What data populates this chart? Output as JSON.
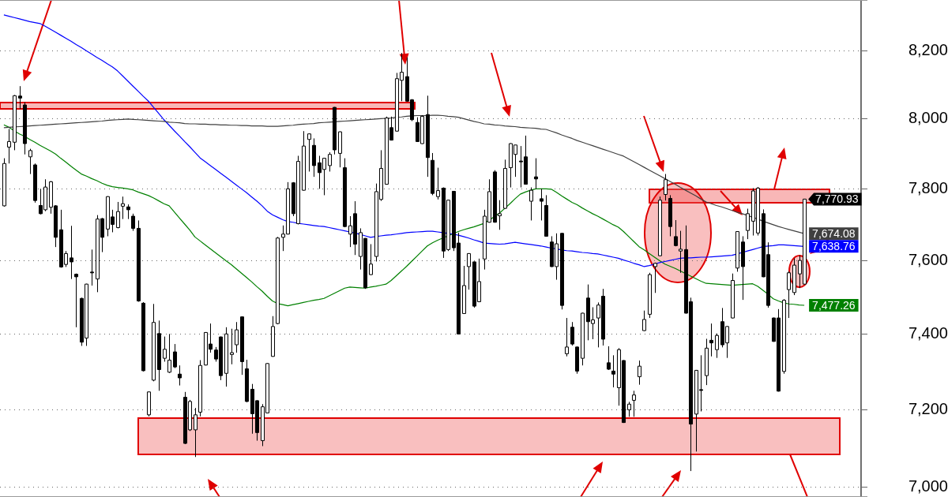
{
  "chart_data": {
    "type": "candlestick",
    "marker": "none",
    "log": "y",
    "grid": "y",
    "tick_labels": "y",
    "ylim": [
      6975,
      8353
    ],
    "yticks": [
      {
        "value": 7000,
        "label": "7,000"
      },
      {
        "value": 7200,
        "label": "7,200"
      },
      {
        "value": 7400,
        "label": "7,400"
      },
      {
        "value": 7600,
        "label": "7,600"
      },
      {
        "value": 7800,
        "label": "7,800"
      },
      {
        "value": 8000,
        "label": "8,000"
      },
      {
        "value": 8200,
        "label": "8,200"
      }
    ],
    "categories": [
      null,
      null,
      null,
      null,
      null,
      null,
      null,
      null,
      null,
      null,
      null,
      null,
      null,
      null,
      null,
      null,
      null,
      null,
      null,
      null,
      null,
      null,
      null,
      null,
      null,
      null,
      null,
      null,
      null,
      null,
      null,
      null,
      null,
      null,
      null,
      null,
      null,
      null,
      null,
      null,
      null,
      null,
      null,
      null,
      null,
      null,
      null,
      null,
      null,
      null,
      null,
      null,
      null,
      null,
      null,
      null,
      null,
      null,
      null,
      null,
      null,
      null,
      null,
      null,
      null,
      null,
      null,
      null,
      null,
      null,
      null,
      null,
      null,
      null,
      null,
      null,
      null,
      null,
      null,
      null,
      null,
      null,
      null,
      null,
      null,
      null,
      null,
      null,
      null,
      null,
      null,
      null,
      null,
      null,
      null,
      null,
      null,
      null,
      null,
      null,
      null,
      null,
      null,
      null,
      null,
      null,
      null,
      null,
      null,
      null,
      null,
      null,
      null,
      null,
      null,
      null,
      null,
      null,
      null,
      null,
      null,
      null,
      null,
      null,
      null,
      null,
      null,
      null,
      null,
      null,
      null,
      null,
      null,
      null,
      null,
      null,
      null,
      null,
      null,
      null,
      null,
      null,
      null,
      null,
      null,
      null,
      null,
      null,
      null,
      null,
      null,
      null,
      null,
      null,
      null,
      null
    ],
    "ohlc": [
      [
        7752,
        7887,
        7750,
        7872
      ],
      [
        7919,
        7971,
        7872,
        7935
      ],
      [
        7933,
        8070,
        7910,
        8068
      ],
      [
        8067,
        8096,
        8029,
        8061
      ],
      [
        8041,
        8049,
        7898,
        7929
      ],
      [
        7891,
        7914,
        7842,
        7909
      ],
      [
        7868,
        7872,
        7761,
        7767
      ],
      [
        7753,
        7800,
        7728,
        7730
      ],
      [
        7741,
        7827,
        7737,
        7805
      ],
      [
        7748,
        7822,
        7730,
        7820
      ],
      [
        7752,
        7754,
        7637,
        7664
      ],
      [
        7685,
        7741,
        7580,
        7582
      ],
      [
        7589,
        7626,
        7582,
        7619
      ],
      [
        7607,
        7696,
        7549,
        7596
      ],
      [
        7562,
        7564,
        7418,
        7555
      ],
      [
        7496,
        7498,
        7368,
        7378
      ],
      [
        7389,
        7536,
        7368,
        7535
      ],
      [
        7568,
        7630,
        7531,
        7566
      ],
      [
        7549,
        7726,
        7513,
        7715
      ],
      [
        7716,
        7718,
        7623,
        7664
      ],
      [
        7687,
        7779,
        7667,
        7778
      ],
      [
        7721,
        7741,
        7678,
        7700
      ],
      [
        7691,
        7763,
        7689,
        7736
      ],
      [
        7751,
        7778,
        7715,
        7758
      ],
      [
        7749,
        7756,
        7715,
        7741
      ],
      [
        7723,
        7730,
        7682,
        7689
      ],
      [
        7689,
        7711,
        7487,
        7489
      ],
      [
        7483,
        7486,
        7300,
        7302
      ],
      [
        7186,
        7247,
        7182,
        7246
      ],
      [
        7277,
        7481,
        7274,
        7431
      ],
      [
        7401,
        7436,
        7249,
        7305
      ],
      [
        7335,
        7393,
        7326,
        7359
      ],
      [
        7298,
        7400,
        7296,
        7330
      ],
      [
        7352,
        7373,
        7309,
        7312
      ],
      [
        7293,
        7316,
        7263,
        7283
      ],
      [
        7232,
        7246,
        7110,
        7112
      ],
      [
        7147,
        7225,
        7144,
        7221
      ],
      [
        7147,
        7204,
        7077,
        7186
      ],
      [
        7193,
        7330,
        7182,
        7316
      ],
      [
        7317,
        7405,
        7316,
        7404
      ],
      [
        7373,
        7428,
        7350,
        7359
      ],
      [
        7357,
        7365,
        7326,
        7333
      ],
      [
        7392,
        7393,
        7277,
        7289
      ],
      [
        7295,
        7418,
        7260,
        7400
      ],
      [
        7345,
        7414,
        7319,
        7350
      ],
      [
        7371,
        7432,
        7350,
        7411
      ],
      [
        7446,
        7447,
        7291,
        7326
      ],
      [
        7307,
        7331,
        7219,
        7221
      ],
      [
        7253,
        7267,
        7137,
        7189
      ],
      [
        7223,
        7224,
        7119,
        7140
      ],
      [
        7119,
        7214,
        7105,
        7207
      ],
      [
        7191,
        7322,
        7190,
        7321
      ],
      [
        7340,
        7448,
        7339,
        7420
      ],
      [
        7428,
        7665,
        7426,
        7662
      ],
      [
        7664,
        7697,
        7626,
        7673
      ],
      [
        7673,
        7819,
        7672,
        7800
      ],
      [
        7817,
        7819,
        7723,
        7730
      ],
      [
        7702,
        7894,
        7700,
        7878
      ],
      [
        7796,
        7965,
        7795,
        7922
      ],
      [
        7941,
        7958,
        7849,
        7957
      ],
      [
        7924,
        7944,
        7834,
        7866
      ],
      [
        7874,
        7894,
        7800,
        7846
      ],
      [
        7855,
        7888,
        7782,
        7887
      ],
      [
        7866,
        7904,
        7849,
        7898
      ],
      [
        8034,
        8035,
        7898,
        7911
      ],
      [
        7901,
        7964,
        7861,
        7963
      ],
      [
        7860,
        7887,
        7692,
        7694
      ],
      [
        7673,
        7723,
        7637,
        7696
      ],
      [
        7730,
        7765,
        7615,
        7645
      ],
      [
        7611,
        7689,
        7575,
        7677
      ],
      [
        7661,
        7662,
        7522,
        7525
      ],
      [
        7561,
        7645,
        7560,
        7590
      ],
      [
        7611,
        7815,
        7597,
        7792
      ],
      [
        7770,
        7910,
        7766,
        7858
      ],
      [
        7813,
        8007,
        7812,
        8003
      ],
      [
        7975,
        8007,
        7938,
        7939
      ],
      [
        7965,
        8135,
        7964,
        8118
      ],
      [
        8113,
        8194,
        8052,
        8137
      ],
      [
        8124,
        8181,
        8051,
        8052
      ],
      [
        8056,
        8058,
        7994,
        7998
      ],
      [
        7990,
        8005,
        7934,
        7935
      ],
      [
        7929,
        8011,
        7928,
        8008
      ],
      [
        8013,
        8068,
        7834,
        7889
      ],
      [
        7881,
        7902,
        7782,
        7787
      ],
      [
        7778,
        7860,
        7770,
        7795
      ],
      [
        7802,
        7804,
        7607,
        7626
      ],
      [
        7630,
        7769,
        7626,
        7768
      ],
      [
        7793,
        7794,
        7626,
        7635
      ],
      [
        7648,
        7677,
        7399,
        7400
      ],
      [
        7455,
        7585,
        7454,
        7531
      ],
      [
        7583,
        7620,
        7520,
        7619
      ],
      [
        7596,
        7597,
        7471,
        7475
      ],
      [
        7487,
        7605,
        7486,
        7542
      ],
      [
        7604,
        7741,
        7575,
        7723
      ],
      [
        7706,
        7827,
        7705,
        7792
      ],
      [
        7848,
        7853,
        7705,
        7706
      ],
      [
        7724,
        7768,
        7685,
        7730
      ],
      [
        7745,
        7883,
        7744,
        7858
      ],
      [
        7860,
        7930,
        7804,
        7929
      ],
      [
        7898,
        7925,
        7834,
        7925
      ],
      [
        7879,
        7922,
        7804,
        7877
      ],
      [
        7891,
        7952,
        7812,
        7813
      ],
      [
        7765,
        7804,
        7711,
        7796
      ],
      [
        7834,
        7887,
        7800,
        7828
      ],
      [
        7772,
        7800,
        7711,
        7765
      ],
      [
        7753,
        7782,
        7666,
        7667
      ],
      [
        7651,
        7667,
        7582,
        7583
      ],
      [
        7583,
        7675,
        7547,
        7646
      ],
      [
        7675,
        7676,
        7466,
        7477
      ],
      [
        7347,
        7443,
        7340,
        7365
      ],
      [
        7418,
        7432,
        7369,
        7373
      ],
      [
        7365,
        7366,
        7294,
        7301
      ],
      [
        7335,
        7457,
        7316,
        7456
      ],
      [
        7497,
        7534,
        7383,
        7433
      ],
      [
        7428,
        7472,
        7386,
        7438
      ],
      [
        7443,
        7485,
        7364,
        7478
      ],
      [
        7502,
        7522,
        7369,
        7386
      ],
      [
        7323,
        7367,
        7304,
        7306
      ],
      [
        7301,
        7343,
        7258,
        7293
      ],
      [
        7257,
        7362,
        7210,
        7358
      ],
      [
        7329,
        7330,
        7165,
        7166
      ],
      [
        7199,
        7220,
        7181,
        7214
      ],
      [
        7224,
        7249,
        7181,
        7238
      ],
      [
        7286,
        7329,
        7265,
        7314
      ],
      [
        7409,
        7463,
        7408,
        7439
      ],
      [
        7453,
        7566,
        7443,
        7561
      ],
      [
        7583,
        7594,
        7511,
        7592
      ],
      [
        7613,
        7778,
        7612,
        7768
      ],
      [
        7784,
        7842,
        7767,
        7826
      ],
      [
        7773,
        7782,
        7667,
        7694
      ],
      [
        7666,
        7712,
        7639,
        7641
      ],
      [
        7626,
        7682,
        7566,
        7631
      ],
      [
        7630,
        7697,
        7455,
        7456
      ],
      [
        7487,
        7498,
        7041,
        7162
      ],
      [
        7188,
        7304,
        7091,
        7303
      ],
      [
        7252,
        7343,
        7195,
        7250
      ],
      [
        7289,
        7387,
        7264,
        7362
      ],
      [
        7383,
        7428,
        7340,
        7376
      ],
      [
        7358,
        7401,
        7336,
        7396
      ],
      [
        7433,
        7470,
        7364,
        7371
      ],
      [
        7376,
        7421,
        7336,
        7420
      ],
      [
        7443,
        7564,
        7442,
        7545
      ],
      [
        7579,
        7681,
        7569,
        7680
      ],
      [
        7651,
        7667,
        7492,
        7583
      ],
      [
        7683,
        7744,
        7659,
        7730
      ],
      [
        7709,
        7802,
        7669,
        7794
      ],
      [
        7676,
        7805,
        7669,
        7802
      ],
      [
        7730,
        7742,
        7554,
        7555
      ],
      [
        7616,
        7650,
        7471,
        7477
      ],
      [
        7443,
        7444,
        7379,
        7380
      ],
      [
        7443,
        7467,
        7247,
        7248
      ],
      [
        7300,
        7494,
        7294,
        7491
      ],
      [
        7520,
        7570,
        7443,
        7566
      ],
      [
        7512,
        7606,
        7505,
        7587
      ],
      [
        7563,
        7614,
        7524,
        7600
      ],
      [
        7535,
        7771,
        7534,
        7770.93
      ]
    ],
    "series": [
      {
        "type": "line",
        "color": "#404040",
        "values": [
          7975,
          7976,
          7977,
          7978,
          7979,
          7980,
          7981,
          7982,
          7983,
          7984,
          7985,
          7986,
          7987,
          7988,
          7989,
          7990,
          7991,
          7992,
          7993,
          7994,
          7996,
          7997,
          7998,
          7999,
          8000,
          7999,
          7998,
          7997,
          7996,
          7995,
          7994,
          7993,
          7991,
          7990,
          7989,
          7987,
          7986,
          7986,
          7985,
          7985,
          7984,
          7984,
          7983,
          7983,
          7982,
          7982,
          7981,
          7981,
          7980,
          7980,
          7980,
          7979,
          7979,
          7979,
          7980,
          7981,
          7982,
          7984,
          7985,
          7986,
          7987,
          7989,
          7990,
          7991,
          7992,
          7993,
          7994,
          7995,
          7996,
          7997,
          7998,
          7999,
          8000,
          8001,
          8002,
          8003,
          8005,
          8006,
          8008,
          8009,
          8010,
          8010,
          8010,
          8011,
          8011,
          8010,
          8008,
          8007,
          8005,
          8001,
          7997,
          7993,
          7990,
          7986,
          7985,
          7983,
          7982,
          7980,
          7979,
          7978,
          7976,
          7975,
          7974,
          7973,
          7971,
          7970,
          7965,
          7960,
          7954,
          7949,
          7944,
          7938,
          7933,
          7928,
          7923,
          7918,
          7913,
          7908,
          7903,
          7898,
          7893,
          7885,
          7877,
          7869,
          7861,
          7853,
          7845,
          7837,
          7829,
          7821,
          7813,
          7804,
          7796,
          7788,
          7780,
          7771,
          7763,
          7758,
          7753,
          7749,
          7744,
          7739,
          7734,
          7730,
          7725,
          7720,
          7715,
          7709,
          7704,
          7699,
          7694,
          7690,
          7686,
          7682,
          7678,
          7674.08
        ],
        "value_labels": [
          null,
          null,
          null,
          null,
          null,
          null,
          null,
          null,
          null,
          null,
          null,
          null,
          null,
          null,
          null,
          null,
          null,
          null,
          null,
          null,
          null,
          null,
          null,
          null,
          null,
          null,
          null,
          null,
          null,
          null,
          null,
          null,
          null,
          null,
          null,
          null,
          null,
          null,
          null,
          null,
          null,
          null,
          null,
          null,
          null,
          null,
          null,
          null,
          null,
          null,
          null,
          null,
          null,
          null,
          null,
          null,
          null,
          null,
          null,
          null,
          null,
          null,
          null,
          null,
          null,
          null,
          null,
          null,
          null,
          null,
          null,
          null,
          null,
          null,
          null,
          null,
          null,
          null,
          null,
          null,
          null,
          null,
          null,
          null,
          null,
          null,
          null,
          null,
          null,
          null,
          null,
          null,
          null,
          null,
          null,
          null,
          null,
          null,
          null,
          null,
          null,
          null,
          null,
          null,
          null,
          null,
          null,
          null,
          null,
          null,
          null,
          null,
          null,
          null,
          null,
          null,
          null,
          null,
          null,
          null,
          null,
          null,
          null,
          null,
          null,
          null,
          null,
          null,
          null,
          null,
          null,
          null,
          null,
          null,
          null,
          null,
          null,
          null,
          null,
          null,
          null,
          null,
          null,
          null,
          null,
          null,
          null,
          null,
          null,
          null,
          null,
          null,
          null,
          null,
          null,
          "7,674.08"
        ]
      },
      {
        "type": "line",
        "color": "#0000ff",
        "values": [
          8308,
          8304,
          8300,
          8296,
          8292,
          8288,
          8285,
          8282,
          8274,
          8265,
          8256,
          8247,
          8238,
          8229,
          8219,
          8210,
          8200,
          8191,
          8181,
          8172,
          8162,
          8153,
          8141,
          8126,
          8111,
          8096,
          8081,
          8066,
          8052,
          8034,
          8016,
          7998,
          7982,
          7966,
          7951,
          7935,
          7920,
          7904,
          7888,
          7877,
          7866,
          7855,
          7844,
          7833,
          7822,
          7811,
          7800,
          7789,
          7777,
          7765,
          7752,
          7737,
          7727,
          7720,
          7713,
          7708,
          7706,
          7703,
          7701,
          7699,
          7697,
          7695,
          7694,
          7691,
          7688,
          7685,
          7682,
          7679,
          7676,
          7672,
          7668,
          7664,
          7666,
          7668,
          7670,
          7671,
          7673,
          7675,
          7677,
          7678,
          7679,
          7680,
          7681,
          7681,
          7679,
          7677,
          7675,
          7673,
          7670,
          7666,
          7662,
          7657,
          7653,
          7648,
          7647,
          7646,
          7645,
          7646,
          7648,
          7650,
          7648,
          7646,
          7644,
          7642,
          7640,
          7637,
          7634,
          7632,
          7629,
          7627,
          7626,
          7624,
          7622,
          7621,
          7619,
          7618,
          7615,
          7612,
          7609,
          7606,
          7601,
          7597,
          7592,
          7588,
          7583,
          7586,
          7590,
          7594,
          7597,
          7600,
          7603,
          7606,
          7607,
          7607,
          7608,
          7609,
          7609,
          7610,
          7611,
          7612,
          7613,
          7614,
          7618,
          7622,
          7626,
          7630,
          7634,
          7638,
          7640,
          7641,
          7643,
          7643,
          7642,
          7641,
          7640,
          7638.76
        ],
        "value_labels": [
          null,
          null,
          null,
          null,
          null,
          null,
          null,
          null,
          null,
          null,
          null,
          null,
          null,
          null,
          null,
          null,
          null,
          null,
          null,
          null,
          null,
          null,
          null,
          null,
          null,
          null,
          null,
          null,
          null,
          null,
          null,
          null,
          null,
          null,
          null,
          null,
          null,
          null,
          null,
          null,
          null,
          null,
          null,
          null,
          null,
          null,
          null,
          null,
          null,
          null,
          null,
          null,
          null,
          null,
          null,
          null,
          null,
          null,
          null,
          null,
          null,
          null,
          null,
          null,
          null,
          null,
          null,
          null,
          null,
          null,
          null,
          null,
          null,
          null,
          null,
          null,
          null,
          null,
          null,
          null,
          null,
          null,
          null,
          null,
          null,
          null,
          null,
          null,
          null,
          null,
          null,
          null,
          null,
          null,
          null,
          null,
          null,
          null,
          null,
          null,
          null,
          null,
          null,
          null,
          null,
          null,
          null,
          null,
          null,
          null,
          null,
          null,
          null,
          null,
          null,
          null,
          null,
          null,
          null,
          null,
          null,
          null,
          null,
          null,
          null,
          null,
          null,
          null,
          null,
          null,
          null,
          null,
          null,
          null,
          null,
          null,
          null,
          null,
          null,
          null,
          null,
          null,
          null,
          null,
          null,
          null,
          null,
          null,
          null,
          null,
          null,
          null,
          null,
          null,
          null,
          "7,638.76"
        ]
      },
      {
        "type": "line",
        "color": "#008000",
        "values": [
          7983,
          7976,
          7966,
          7957,
          7950,
          7941,
          7933,
          7924,
          7916,
          7908,
          7899,
          7887,
          7876,
          7864,
          7853,
          7842,
          7836,
          7829,
          7823,
          7816,
          7810,
          7806,
          7804,
          7802,
          7800,
          7797,
          7791,
          7786,
          7781,
          7774,
          7766,
          7758,
          7752,
          7735,
          7718,
          7701,
          7684,
          7665,
          7654,
          7643,
          7632,
          7621,
          7610,
          7599,
          7589,
          7577,
          7565,
          7553,
          7541,
          7528,
          7516,
          7502,
          7489,
          7482,
          7479,
          7476,
          7479,
          7482,
          7485,
          7488,
          7491,
          7493,
          7496,
          7503,
          7510,
          7517,
          7524,
          7527,
          7526,
          7525,
          7524,
          7527,
          7529,
          7532,
          7535,
          7545,
          7558,
          7571,
          7584,
          7598,
          7612,
          7626,
          7640,
          7649,
          7656,
          7662,
          7668,
          7674,
          7680,
          7685,
          7689,
          7693,
          7698,
          7703,
          7712,
          7722,
          7732,
          7745,
          7758,
          7772,
          7785,
          7791,
          7796,
          7800,
          7800,
          7800,
          7799,
          7790,
          7780,
          7771,
          7762,
          7755,
          7746,
          7738,
          7730,
          7723,
          7715,
          7707,
          7699,
          7692,
          7680,
          7666,
          7652,
          7638,
          7629,
          7619,
          7609,
          7599,
          7590,
          7584,
          7578,
          7571,
          7564,
          7557,
          7550,
          7543,
          7537,
          7536,
          7535,
          7534,
          7533,
          7532,
          7533,
          7534,
          7535,
          7536,
          7529,
          7518,
          7507,
          7495,
          7489,
          7484,
          7481,
          7480,
          7478,
          7477.26
        ],
        "value_labels": [
          null,
          null,
          null,
          null,
          null,
          null,
          null,
          null,
          null,
          null,
          null,
          null,
          null,
          null,
          null,
          null,
          null,
          null,
          null,
          null,
          null,
          null,
          null,
          null,
          null,
          null,
          null,
          null,
          null,
          null,
          null,
          null,
          null,
          null,
          null,
          null,
          null,
          null,
          null,
          null,
          null,
          null,
          null,
          null,
          null,
          null,
          null,
          null,
          null,
          null,
          null,
          null,
          null,
          null,
          null,
          null,
          null,
          null,
          null,
          null,
          null,
          null,
          null,
          null,
          null,
          null,
          null,
          null,
          null,
          null,
          null,
          null,
          null,
          null,
          null,
          null,
          null,
          null,
          null,
          null,
          null,
          null,
          null,
          null,
          null,
          null,
          null,
          null,
          null,
          null,
          null,
          null,
          null,
          null,
          null,
          null,
          null,
          null,
          null,
          null,
          null,
          null,
          null,
          null,
          null,
          null,
          null,
          null,
          null,
          null,
          null,
          null,
          null,
          null,
          null,
          null,
          null,
          null,
          null,
          null,
          null,
          null,
          null,
          null,
          null,
          null,
          null,
          null,
          null,
          null,
          null,
          null,
          null,
          null,
          null,
          null,
          null,
          null,
          null,
          null,
          null,
          null,
          null,
          null,
          null,
          null,
          null,
          null,
          null,
          null,
          null,
          null,
          null,
          null,
          null,
          "7,477.26"
        ]
      }
    ],
    "value_labels": [
      null,
      null,
      null,
      null,
      null,
      null,
      null,
      null,
      null,
      null,
      null,
      null,
      null,
      null,
      null,
      null,
      null,
      null,
      null,
      null,
      null,
      null,
      null,
      null,
      null,
      null,
      null,
      null,
      null,
      null,
      null,
      null,
      null,
      null,
      null,
      null,
      null,
      null,
      null,
      null,
      null,
      null,
      null,
      null,
      null,
      null,
      null,
      null,
      null,
      null,
      null,
      null,
      null,
      null,
      null,
      null,
      null,
      null,
      null,
      null,
      null,
      null,
      null,
      null,
      null,
      null,
      null,
      null,
      null,
      null,
      null,
      null,
      null,
      null,
      null,
      null,
      null,
      null,
      null,
      null,
      null,
      null,
      null,
      null,
      null,
      null,
      null,
      null,
      null,
      null,
      null,
      null,
      null,
      null,
      null,
      null,
      null,
      null,
      null,
      null,
      null,
      null,
      null,
      null,
      null,
      null,
      null,
      null,
      null,
      null,
      null,
      null,
      null,
      null,
      null,
      null,
      null,
      null,
      null,
      null,
      null,
      null,
      null,
      null,
      null,
      null,
      null,
      null,
      null,
      null,
      null,
      null,
      null,
      null,
      null,
      null,
      null,
      null,
      null,
      null,
      null,
      null,
      null,
      null,
      null,
      null,
      null,
      null,
      null,
      null,
      null,
      null,
      null,
      null,
      null,
      "7,770.93"
    ]
  }
}
